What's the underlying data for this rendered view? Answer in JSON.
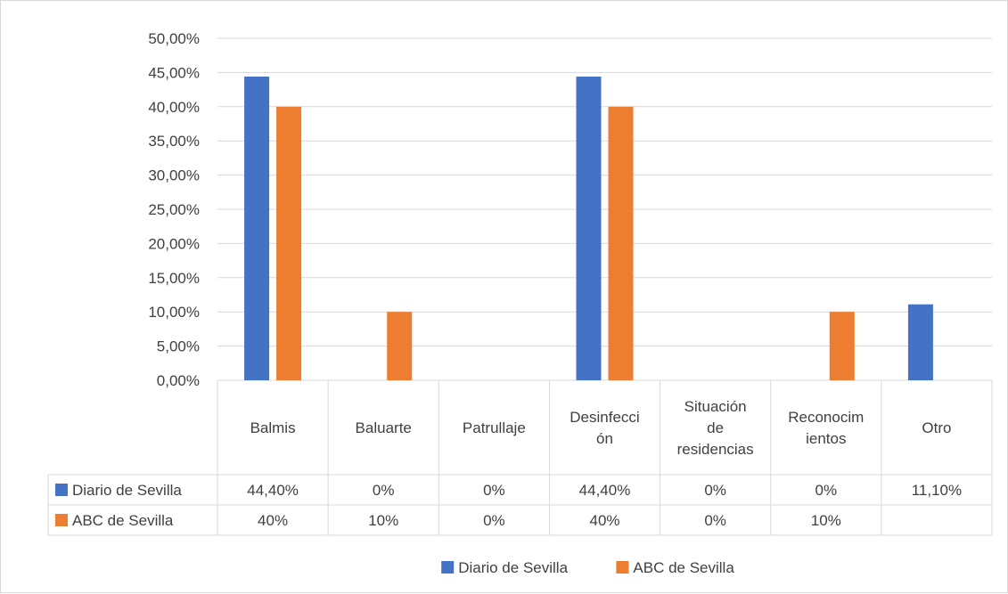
{
  "chart_data": {
    "type": "bar",
    "categories": [
      "Balmis",
      "Baluarte",
      "Patrullaje",
      "Desinfección",
      "Situación de residencias",
      "Reconocimientos",
      "Otro"
    ],
    "category_label_lines": [
      [
        "Balmis"
      ],
      [
        "Baluarte"
      ],
      [
        "Patrullaje"
      ],
      [
        "Desinfecci",
        "ón"
      ],
      [
        "Situación",
        "de",
        "residencias"
      ],
      [
        "Reconocim",
        "ientos"
      ],
      [
        "Otro"
      ]
    ],
    "series": [
      {
        "name": "Diario de Sevilla",
        "color": "#4472c4",
        "values": [
          44.4,
          0,
          0,
          44.4,
          0,
          0,
          11.1
        ],
        "table_labels": [
          "44,40%",
          "0%",
          "0%",
          "44,40%",
          "0%",
          "0%",
          "11,10%"
        ]
      },
      {
        "name": "ABC de Sevilla",
        "color": "#ed7d31",
        "values": [
          40,
          10,
          0,
          40,
          0,
          10,
          null
        ],
        "table_labels": [
          "40%",
          "10%",
          "0%",
          "40%",
          "0%",
          "10%",
          ""
        ]
      }
    ],
    "ylim": [
      0,
      50
    ],
    "yticks": [
      "0,00%",
      "5,00%",
      "10,00%",
      "15,00%",
      "20,00%",
      "25,00%",
      "30,00%",
      "35,00%",
      "40,00%",
      "45,00%",
      "50,00%"
    ],
    "grid": true,
    "data_table": true,
    "legend_position": "bottom",
    "xlabel": "",
    "ylabel": "",
    "title": ""
  }
}
